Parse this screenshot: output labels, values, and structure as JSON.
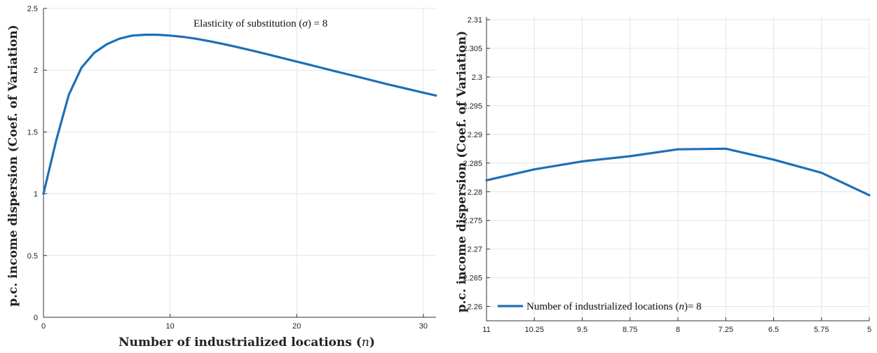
{
  "colors": {
    "series": "#1f6fb5",
    "grid": "#e4e4e4",
    "axis": "#333333"
  },
  "chart_data": [
    {
      "type": "line",
      "title": "",
      "annotation": "Elasticity of substitution (σ) = 8",
      "xlabel": "Number of industrialized locations (n)",
      "ylabel": "p.c. income dispersion (Coef. of Variation)",
      "xlim": [
        0,
        31
      ],
      "ylim": [
        0,
        2.5
      ],
      "xticks": [
        0,
        10,
        20,
        30
      ],
      "xtick_labels": [
        "0",
        "10",
        "20",
        "30"
      ],
      "yticks": [
        0,
        0.5,
        1,
        1.5,
        2,
        2.5
      ],
      "ytick_labels": [
        "0",
        "0.5",
        "1",
        "1.5",
        "2",
        "2.5"
      ],
      "grid": true,
      "series": [
        {
          "x": [
            0,
            1,
            2,
            3,
            4,
            5,
            6,
            7,
            8,
            9,
            10,
            11,
            12,
            13,
            14,
            15,
            16,
            17,
            18,
            19,
            20,
            21,
            22,
            23,
            24,
            25,
            26,
            27,
            28,
            29,
            30,
            31
          ],
          "values": [
            1.0,
            1.43,
            1.8,
            2.02,
            2.14,
            2.21,
            2.255,
            2.28,
            2.287,
            2.287,
            2.28,
            2.27,
            2.255,
            2.237,
            2.216,
            2.194,
            2.17,
            2.146,
            2.121,
            2.095,
            2.07,
            2.044,
            2.018,
            1.992,
            1.967,
            1.942,
            1.916,
            1.89,
            1.866,
            1.842,
            1.818,
            1.795
          ]
        }
      ]
    },
    {
      "type": "line",
      "title": "",
      "xlabel": "",
      "ylabel": "p.c. income dispersion (Coef. of Variation)",
      "categories": [
        "11",
        "10.25",
        "9.5",
        "8.75",
        "8",
        "7.25",
        "6.5",
        "5.75",
        "5"
      ],
      "ylim": [
        2.2575,
        2.3105
      ],
      "yticks": [
        2.26,
        2.265,
        2.27,
        2.275,
        2.28,
        2.285,
        2.29,
        2.295,
        2.3,
        2.305,
        2.31
      ],
      "ytick_labels": [
        "2.26",
        "2.265",
        "2.27",
        "2.275",
        "2.28",
        "2.285",
        "2.29",
        "2.295",
        "2.3",
        "2.305",
        "2.31"
      ],
      "grid": true,
      "legend": "bottom-left",
      "series": [
        {
          "name": "Number of industrialized locations (n)= 8",
          "values": [
            2.282,
            2.2839,
            2.2853,
            2.2862,
            2.2874,
            2.2875,
            2.2856,
            2.2833,
            2.2794
          ]
        }
      ]
    }
  ]
}
